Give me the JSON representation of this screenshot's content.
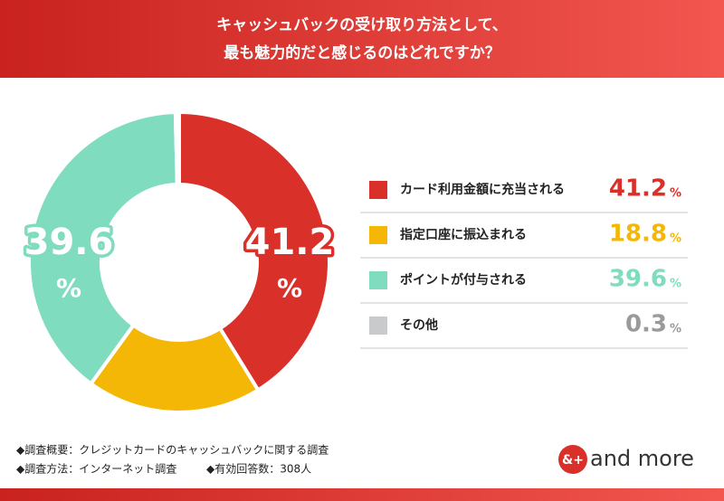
{
  "chart_data": {
    "type": "donut",
    "title": [
      "キャッシュバックの受け取り方法として、",
      "最も魅力的だと感じるのはどれですか？"
    ],
    "categories": [
      "カード利用金額に充当される",
      "指定口座に振込まれる",
      "ポイントが付与される",
      "その他"
    ],
    "values": [
      41.2,
      18.8,
      39.6,
      0.3
    ],
    "colors": [
      "#d9302a",
      "#f5b705",
      "#7fdcbf",
      "#c9cacc"
    ],
    "value_colors": [
      "#d9302a",
      "#f5b705",
      "#7fdcbf",
      "#9a9a9a"
    ],
    "unit": "%",
    "notes": [
      "◆調査概要：クレジットカードのキャッシュバックに関する調査",
      "◆調査方法：インターネット調査",
      "◆有効回答数：308人"
    ],
    "logo": {
      "icon": "&+",
      "text": "and more"
    }
  }
}
